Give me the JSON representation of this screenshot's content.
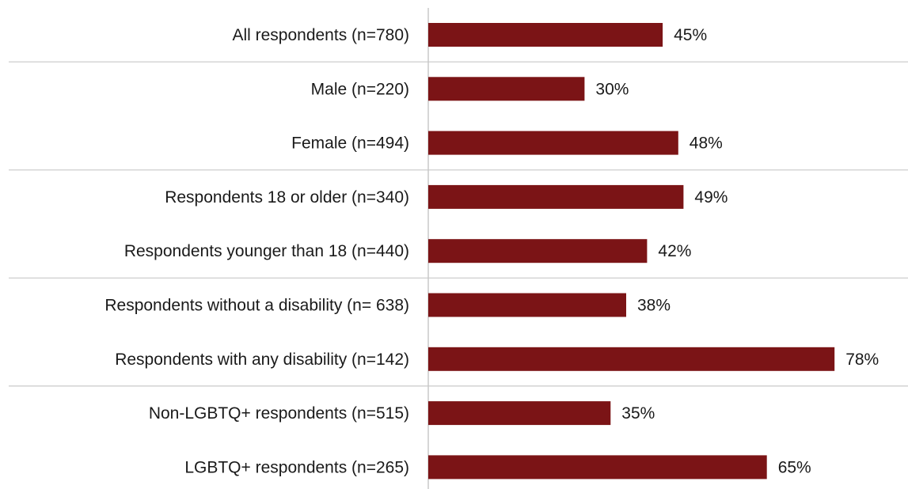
{
  "chart_data": {
    "type": "bar",
    "orientation": "horizontal",
    "title": "",
    "xlabel": "",
    "ylabel": "",
    "xlim": [
      0,
      100
    ],
    "grid": false,
    "legend": "none",
    "bar_color": "#7b1416",
    "categories": [
      "All respondents (n=780)",
      "Male (n=220)",
      "Female (n=494)",
      "Respondents 18 or older (n=340)",
      "Respondents younger than 18 (n=440)",
      "Respondents without a disability (n= 638)",
      "Respondents with any disability (n=142)",
      "Non-LGBTQ+ respondents (n=515)",
      "LGBTQ+ respondents (n=265)"
    ],
    "values": [
      45,
      30,
      48,
      49,
      42,
      38,
      78,
      35,
      65
    ],
    "value_labels": [
      "45%",
      "30%",
      "48%",
      "49%",
      "42%",
      "38%",
      "78%",
      "35%",
      "65%"
    ],
    "group_separators_after_index": [
      0,
      2,
      4,
      6
    ]
  }
}
